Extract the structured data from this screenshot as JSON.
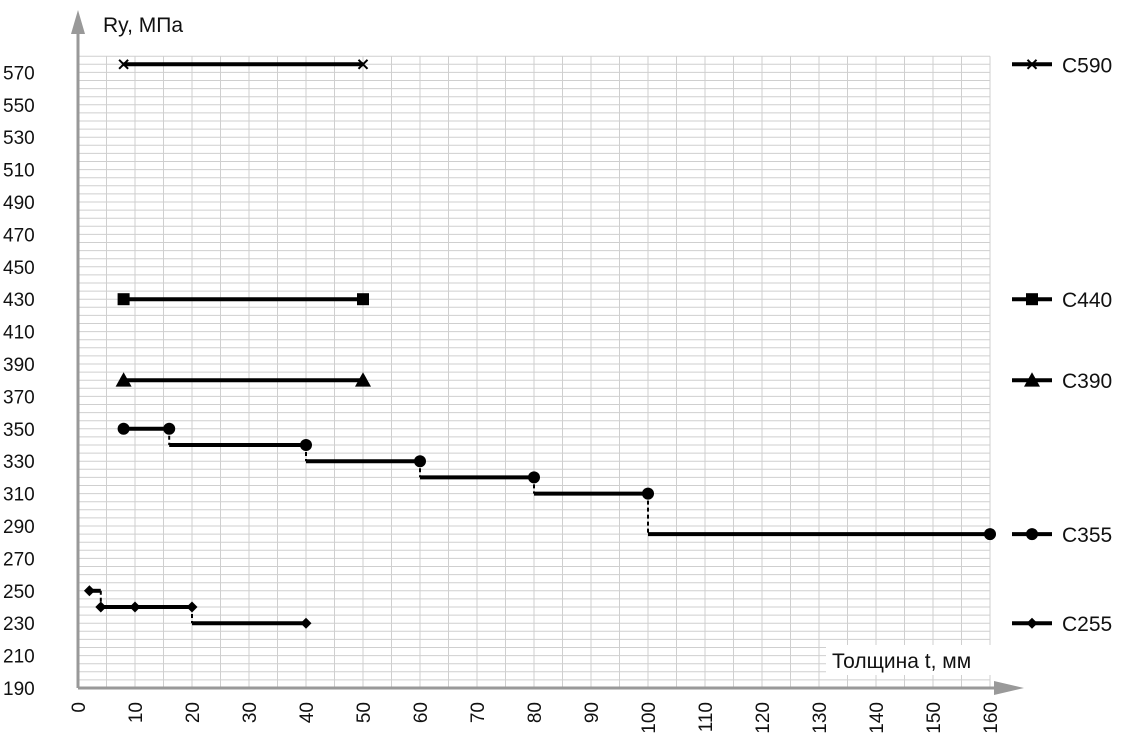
{
  "chart_data": {
    "type": "line",
    "ylabel": "Ry, МПа",
    "xlabel": "Толщина t, мм",
    "xlim": [
      0,
      160
    ],
    "ylim": [
      190,
      580
    ],
    "grid": true,
    "legend_position": "right",
    "x_ticks": [
      "0",
      "10",
      "20",
      "30",
      "40",
      "50",
      "60",
      "70",
      "80",
      "90",
      "100",
      "110",
      "120",
      "130",
      "140",
      "150",
      "160"
    ],
    "y_ticks": [
      "190",
      "210",
      "230",
      "250",
      "270",
      "290",
      "310",
      "330",
      "350",
      "370",
      "390",
      "410",
      "430",
      "450",
      "470",
      "490",
      "510",
      "530",
      "550",
      "570"
    ],
    "series": [
      {
        "name": "C590",
        "marker": "x",
        "points": [
          [
            8,
            575
          ],
          [
            50,
            575
          ]
        ],
        "legend_y": 575
      },
      {
        "name": "C440",
        "marker": "square",
        "points": [
          [
            8,
            430
          ],
          [
            50,
            430
          ]
        ],
        "legend_y": 430
      },
      {
        "name": "C390",
        "marker": "triangle",
        "points": [
          [
            8,
            380
          ],
          [
            50,
            380
          ]
        ],
        "legend_y": 380
      },
      {
        "name": "C355",
        "marker": "circle",
        "points": [
          [
            8,
            350
          ],
          [
            16,
            350
          ],
          [
            16,
            340
          ],
          [
            40,
            340
          ],
          [
            40,
            330
          ],
          [
            60,
            330
          ],
          [
            60,
            320
          ],
          [
            80,
            320
          ],
          [
            80,
            310
          ],
          [
            100,
            310
          ],
          [
            100,
            285
          ],
          [
            160,
            285
          ]
        ],
        "marker_points": [
          [
            8,
            350
          ],
          [
            16,
            350
          ],
          [
            40,
            340
          ],
          [
            60,
            330
          ],
          [
            80,
            320
          ],
          [
            100,
            310
          ],
          [
            160,
            285
          ]
        ],
        "legend_y": 285
      },
      {
        "name": "C255",
        "marker": "diamond",
        "points": [
          [
            2,
            250
          ],
          [
            4,
            250
          ],
          [
            4,
            240
          ],
          [
            20,
            240
          ],
          [
            20,
            230
          ],
          [
            40,
            230
          ]
        ],
        "marker_points": [
          [
            2,
            250
          ],
          [
            4,
            240
          ],
          [
            10,
            240
          ],
          [
            20,
            240
          ],
          [
            40,
            230
          ]
        ],
        "legend_y": 230
      }
    ]
  }
}
